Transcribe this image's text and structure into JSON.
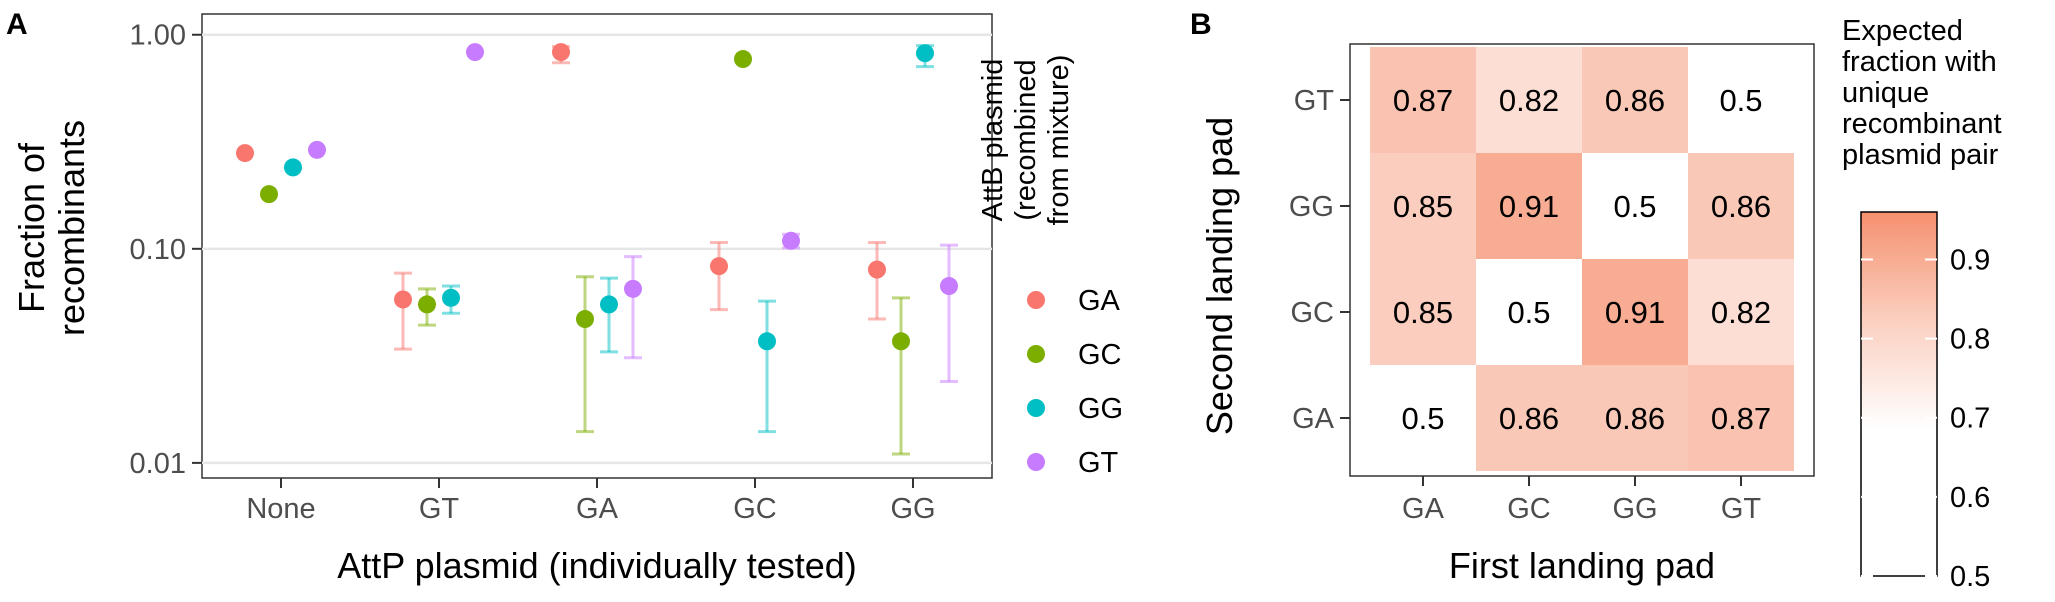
{
  "panels": {
    "a_label": "A",
    "b_label": "B"
  },
  "colors": {
    "GA": "#F8766D",
    "GC": "#7CAE00",
    "GG": "#00BFC4",
    "GT": "#C77CFF",
    "heat_low": "#FFFFFF",
    "heat_high": "#F5906F"
  },
  "chart_data": [
    {
      "type": "scatter",
      "panel": "A",
      "xlabel": "AttP plasmid (individually tested)",
      "ylabel": "Fraction of recombinants",
      "y_scale": "log10",
      "ylim": [
        0.0085,
        1.25
      ],
      "yticks": [
        "0.01",
        "0.10",
        "1.00"
      ],
      "ytick_values": [
        0.01,
        0.1,
        1.0
      ],
      "categories": [
        "None",
        "GT",
        "GA",
        "GC",
        "GG"
      ],
      "legend": {
        "title": "AttB plasmid (recombined from mixture)",
        "title_lines": [
          "AttB plasmid",
          "(recombined",
          "from mixture)"
        ],
        "position": "right",
        "entries": [
          "GA",
          "GC",
          "GG",
          "GT"
        ]
      },
      "grid": true,
      "series": [
        {
          "name": "GA",
          "values": [
            0.28,
            0.058,
            0.83,
            0.083,
            0.08
          ],
          "err_low": [
            null,
            0.034,
            0.74,
            0.052,
            0.047
          ],
          "err_high": [
            null,
            0.077,
            0.88,
            0.107,
            0.107
          ]
        },
        {
          "name": "GC",
          "values": [
            0.18,
            0.055,
            0.047,
            0.77,
            0.037
          ],
          "err_low": [
            null,
            0.044,
            0.014,
            null,
            0.011
          ],
          "err_high": [
            null,
            0.065,
            0.074,
            null,
            0.059
          ]
        },
        {
          "name": "GG",
          "values": [
            0.24,
            0.059,
            0.055,
            0.037,
            0.82
          ],
          "err_low": [
            null,
            0.05,
            0.033,
            0.014,
            0.71
          ],
          "err_high": [
            null,
            0.067,
            0.073,
            0.057,
            0.89
          ]
        },
        {
          "name": "GT",
          "values": [
            0.29,
            0.83,
            0.065,
            0.109,
            0.067
          ],
          "err_low": [
            null,
            null,
            0.031,
            0.101,
            0.024
          ],
          "err_high": [
            null,
            null,
            0.092,
            0.117,
            0.104
          ]
        }
      ]
    },
    {
      "type": "heatmap",
      "panel": "B",
      "xlabel": "First landing pad",
      "ylabel": "Second landing pad",
      "x": [
        "GA",
        "GC",
        "GG",
        "GT"
      ],
      "y": [
        "GA",
        "GC",
        "GG",
        "GT"
      ],
      "values": [
        [
          0.5,
          0.86,
          0.86,
          0.87
        ],
        [
          0.85,
          0.5,
          0.91,
          0.82
        ],
        [
          0.85,
          0.91,
          0.5,
          0.86
        ],
        [
          0.87,
          0.82,
          0.86,
          0.5
        ]
      ],
      "labels": [
        [
          "0.5",
          "0.86",
          "0.86",
          "0.87"
        ],
        [
          "0.85",
          "0.5",
          "0.91",
          "0.82"
        ],
        [
          "0.85",
          "0.91",
          "0.5",
          "0.86"
        ],
        [
          "0.87",
          "0.82",
          "0.86",
          "0.5"
        ]
      ],
      "colorbar": {
        "title": "Expected fraction with unique recombinant plasmid pair",
        "title_lines": [
          "Expected",
          "fraction with",
          "unique",
          "recombinant",
          "plasmid pair"
        ],
        "range": [
          0.5,
          0.96
        ],
        "ticks": [
          0.9,
          0.8,
          0.7,
          0.6,
          0.5
        ],
        "tick_labels": [
          "0.9",
          "0.8",
          "0.7",
          "0.6",
          "0.5"
        ]
      }
    }
  ]
}
